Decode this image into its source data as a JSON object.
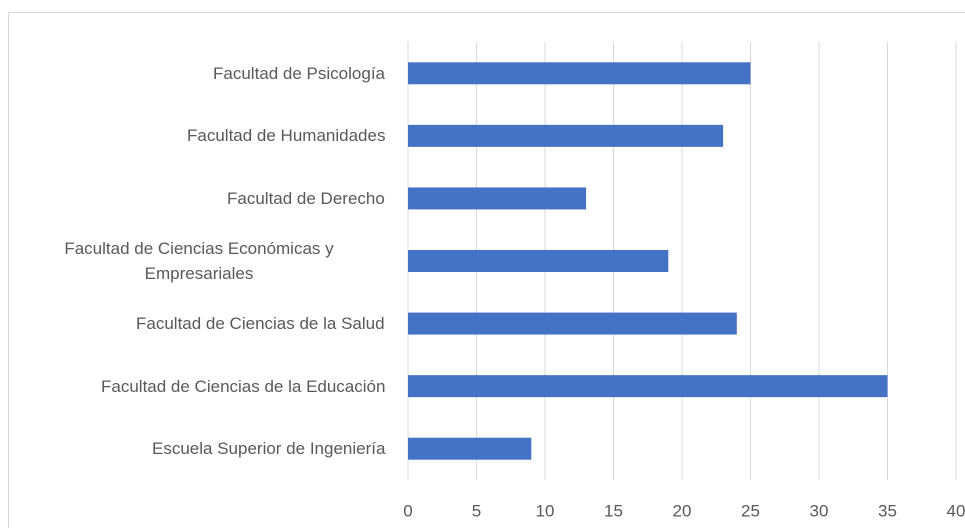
{
  "chart_data": {
    "type": "bar",
    "orientation": "horizontal",
    "categories": [
      "Facultad de Psicología",
      "Facultad de Humanidades",
      "Facultad de Derecho",
      "Facultad de Ciencias Económicas y Empresariales",
      "Facultad de Ciencias de la Salud",
      "Facultad de Ciencias de la Educación",
      "Escuela Superior de Ingeniería"
    ],
    "values": [
      25,
      23,
      13,
      19,
      24,
      35,
      9
    ],
    "color": "#4472c4",
    "xlim": [
      0,
      40
    ],
    "xticks": [
      0,
      5,
      10,
      15,
      20,
      25,
      30,
      35,
      40
    ],
    "grid": true
  }
}
